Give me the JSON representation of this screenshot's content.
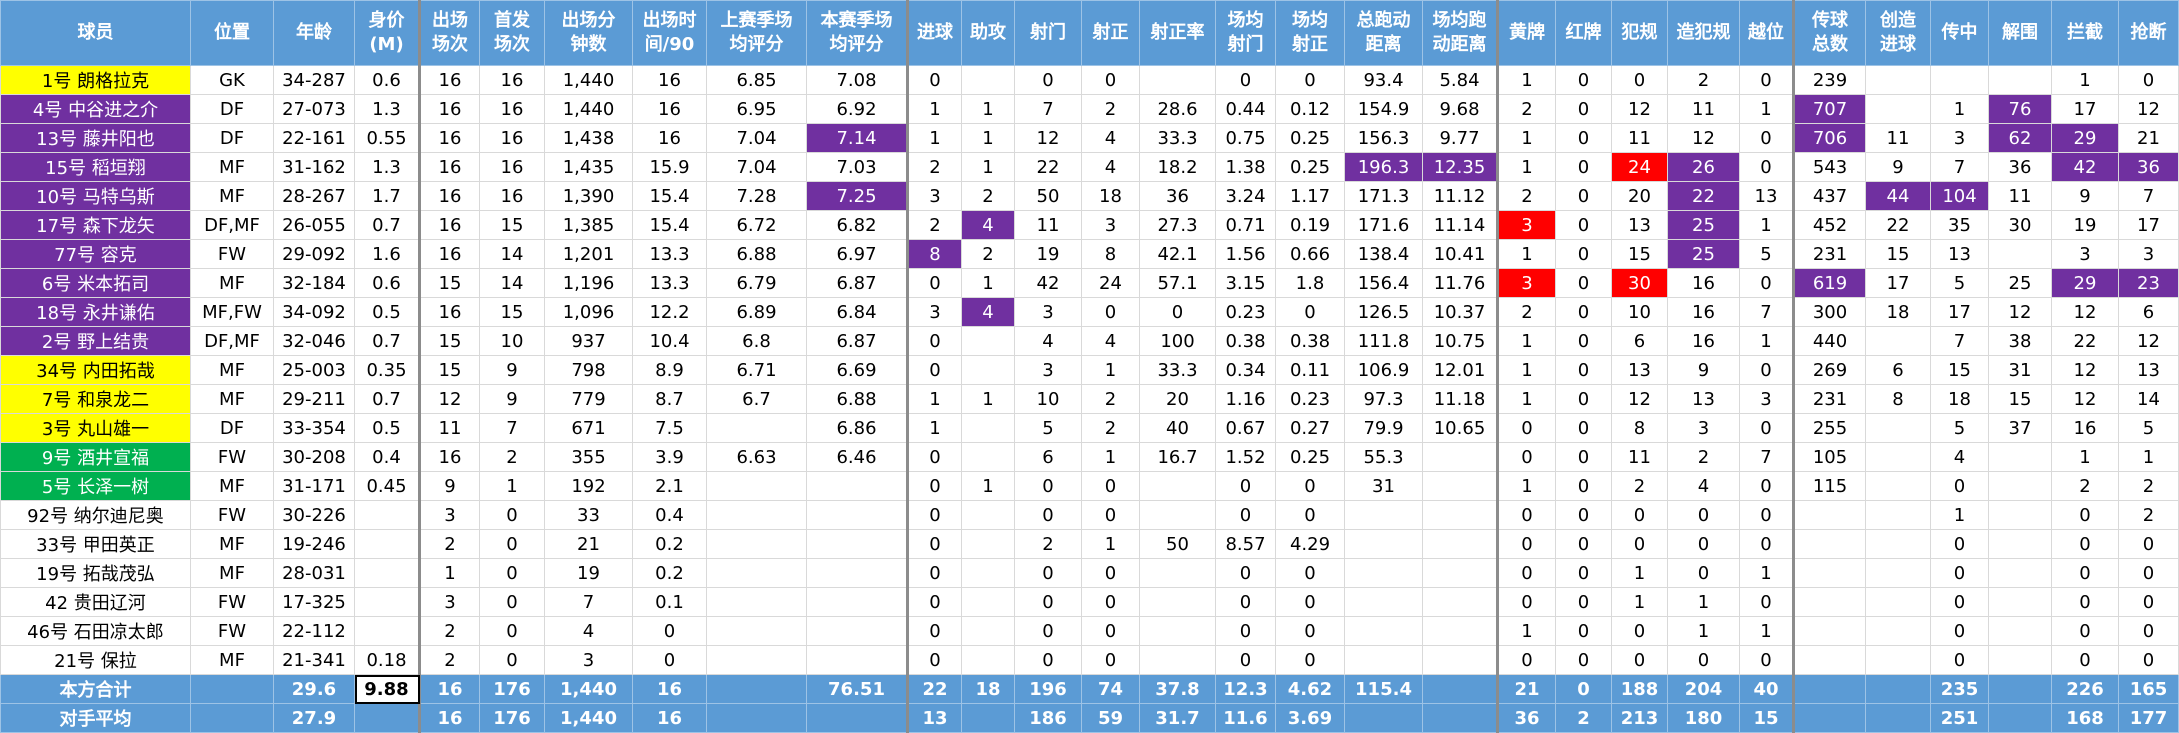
{
  "header": [
    "球员",
    "位置",
    "年龄",
    "身价\n(M)",
    "出场\n场次",
    "首发\n场次",
    "出场分\n钟数",
    "出场时\n间/90",
    "上赛季场\n均评分",
    "本赛季场\n均评分",
    "进球",
    "助攻",
    "射门",
    "射正",
    "射正率",
    "场均\n射门",
    "场均\n射正",
    "总跑动\n距离",
    "场均跑\n动距离",
    "黄牌",
    "红牌",
    "犯规",
    "造犯规",
    "越位",
    "传球\n总数",
    "创造\n进球",
    "传中",
    "解围",
    "拦截",
    "抢断"
  ],
  "rows": [
    {
      "name_color": "#ffff00",
      "cells": [
        "1号 朗格拉克",
        "GK",
        "34-287",
        0.6,
        16,
        16,
        "1,440",
        16,
        6.85,
        7.08,
        0,
        null,
        0,
        0,
        null,
        0,
        0,
        93.4,
        5.84,
        1,
        0,
        0,
        2,
        0,
        239,
        null,
        null,
        null,
        1,
        0
      ]
    },
    {
      "name_color": "#7030a0",
      "cells": [
        "4号 中谷进之介",
        "DF",
        "27-073",
        1.3,
        16,
        16,
        "1,440",
        16,
        6.95,
        6.92,
        1,
        1,
        7,
        2,
        28.6,
        0.44,
        0.12,
        154.9,
        9.68,
        2,
        0,
        12,
        11,
        1,
        707,
        null,
        1,
        76,
        17,
        12
      ],
      "highlight": {
        "24": "#7030a0",
        "27": "#7030a0"
      }
    },
    {
      "name_color": "#7030a0",
      "cells": [
        "13号 藤井阳也",
        "DF",
        "22-161",
        0.55,
        16,
        16,
        "1,438",
        16,
        7.04,
        7.14,
        1,
        1,
        12,
        4,
        33.3,
        0.75,
        0.25,
        156.3,
        9.77,
        1,
        0,
        11,
        12,
        0,
        706,
        11,
        3,
        62,
        29,
        21
      ],
      "highlight": {
        "9": "#7030a0",
        "24": "#7030a0",
        "27": "#7030a0",
        "28": "#7030a0"
      }
    },
    {
      "name_color": "#7030a0",
      "cells": [
        "15号 稻垣翔",
        "MF",
        "31-162",
        1.3,
        16,
        16,
        "1,435",
        15.9,
        7.04,
        7.03,
        2,
        1,
        22,
        4,
        18.2,
        1.38,
        0.25,
        196.3,
        12.35,
        1,
        0,
        24,
        26,
        0,
        543,
        9,
        7,
        36,
        42,
        36
      ],
      "highlight": {
        "17": "#7030a0",
        "18": "#7030a0",
        "21": "#ff0000",
        "22": "#7030a0",
        "28": "#7030a0",
        "29": "#7030a0"
      }
    },
    {
      "name_color": "#7030a0",
      "cells": [
        "10号 马特乌斯",
        "MF",
        "28-267",
        1.7,
        16,
        16,
        "1,390",
        15.4,
        7.28,
        7.25,
        3,
        2,
        50,
        18,
        36,
        3.24,
        1.17,
        171.3,
        11.12,
        2,
        0,
        20,
        22,
        13,
        437,
        44,
        104,
        11,
        9,
        7
      ],
      "highlight": {
        "9": "#7030a0",
        "22": "#7030a0",
        "25": "#7030a0",
        "26": "#7030a0"
      }
    },
    {
      "name_color": "#7030a0",
      "cells": [
        "17号 森下龙矢",
        "DF,MF",
        "26-055",
        0.7,
        16,
        15,
        "1,385",
        15.4,
        6.72,
        6.82,
        2,
        4,
        11,
        3,
        27.3,
        0.71,
        0.19,
        171.6,
        11.14,
        3,
        0,
        13,
        25,
        1,
        452,
        22,
        35,
        30,
        19,
        17
      ],
      "highlight": {
        "11": "#7030a0",
        "19": "#ff0000",
        "22": "#7030a0"
      }
    },
    {
      "name_color": "#7030a0",
      "cells": [
        "77号 容克",
        "FW",
        "29-092",
        1.6,
        16,
        14,
        "1,201",
        13.3,
        6.88,
        6.97,
        8,
        2,
        19,
        8,
        42.1,
        1.56,
        0.66,
        138.4,
        10.41,
        1,
        0,
        15,
        25,
        5,
        231,
        15,
        13,
        null,
        3,
        3
      ],
      "highlight": {
        "10": "#7030a0",
        "22": "#7030a0"
      }
    },
    {
      "name_color": "#7030a0",
      "cells": [
        "6号 米本拓司",
        "MF",
        "32-184",
        0.6,
        15,
        14,
        "1,196",
        13.3,
        6.79,
        6.87,
        0,
        1,
        42,
        24,
        57.1,
        3.15,
        1.8,
        156.4,
        11.76,
        3,
        0,
        30,
        16,
        0,
        619,
        17,
        5,
        25,
        29,
        23
      ],
      "highlight": {
        "19": "#ff0000",
        "21": "#ff0000",
        "24": "#7030a0",
        "28": "#7030a0",
        "29": "#7030a0"
      }
    },
    {
      "name_color": "#7030a0",
      "cells": [
        "18号 永井谦佑",
        "MF,FW",
        "34-092",
        0.5,
        16,
        15,
        "1,096",
        12.2,
        6.89,
        6.84,
        3,
        4,
        3,
        0,
        0,
        0.23,
        0,
        126.5,
        10.37,
        2,
        0,
        10,
        16,
        7,
        300,
        18,
        17,
        12,
        12,
        6
      ],
      "highlight": {
        "11": "#7030a0"
      }
    },
    {
      "name_color": "#7030a0",
      "cells": [
        "2号 野上结贵",
        "DF,MF",
        "32-046",
        0.7,
        15,
        10,
        "937",
        10.4,
        6.8,
        6.87,
        0,
        null,
        4,
        4,
        100,
        0.38,
        0.38,
        111.8,
        10.75,
        1,
        0,
        6,
        16,
        1,
        440,
        null,
        7,
        38,
        22,
        12
      ]
    },
    {
      "name_color": "#ffff00",
      "cells": [
        "34号 内田拓哉",
        "MF",
        "25-003",
        0.35,
        15,
        9,
        "798",
        8.9,
        6.71,
        6.69,
        0,
        null,
        3,
        1,
        33.3,
        0.34,
        0.11,
        106.9,
        12.01,
        1,
        0,
        13,
        9,
        0,
        269,
        6,
        15,
        31,
        12,
        13
      ]
    },
    {
      "name_color": "#ffff00",
      "cells": [
        "7号 和泉龙二",
        "MF",
        "29-211",
        0.7,
        12,
        9,
        "779",
        8.7,
        6.7,
        6.88,
        1,
        1,
        10,
        2,
        20,
        1.16,
        0.23,
        97.3,
        11.18,
        1,
        0,
        12,
        13,
        3,
        231,
        8,
        18,
        15,
        12,
        14
      ]
    },
    {
      "name_color": "#ffff00",
      "cells": [
        "3号 丸山雄一",
        "DF",
        "33-354",
        0.5,
        11,
        7,
        "671",
        7.5,
        null,
        6.86,
        1,
        null,
        5,
        2,
        40,
        0.67,
        0.27,
        79.9,
        10.65,
        0,
        0,
        8,
        3,
        0,
        255,
        null,
        5,
        37,
        16,
        5
      ]
    },
    {
      "name_color": "#00b050",
      "cells": [
        "9号 酒井宣福",
        "FW",
        "30-208",
        0.4,
        16,
        2,
        "355",
        3.9,
        6.63,
        6.46,
        0,
        null,
        6,
        1,
        16.7,
        1.52,
        0.25,
        55.3,
        null,
        0,
        0,
        11,
        2,
        7,
        105,
        null,
        4,
        null,
        1,
        1
      ]
    },
    {
      "name_color": "#00b050",
      "cells": [
        "5号 长泽一树",
        "MF",
        "31-171",
        0.45,
        9,
        1,
        "192",
        2.1,
        null,
        null,
        0,
        1,
        0,
        0,
        null,
        0,
        0,
        31,
        null,
        1,
        0,
        2,
        4,
        0,
        115,
        null,
        0,
        null,
        2,
        2
      ]
    },
    {
      "name_color": "#ffffff",
      "cells": [
        "92号 纳尔迪尼奥",
        "FW",
        "30-226",
        null,
        3,
        0,
        "33",
        0.4,
        null,
        null,
        0,
        null,
        0,
        0,
        null,
        0,
        0,
        null,
        null,
        0,
        0,
        0,
        0,
        0,
        null,
        null,
        1,
        null,
        0,
        2
      ]
    },
    {
      "name_color": "#ffffff",
      "cells": [
        "33号 甲田英正",
        "MF",
        "19-246",
        null,
        2,
        0,
        "21",
        0.2,
        null,
        null,
        0,
        null,
        2,
        1,
        50,
        8.57,
        4.29,
        null,
        null,
        0,
        0,
        0,
        0,
        0,
        null,
        null,
        0,
        null,
        0,
        0
      ]
    },
    {
      "name_color": "#ffffff",
      "cells": [
        "19号 拓哉茂弘",
        "MF",
        "28-031",
        null,
        1,
        0,
        "19",
        0.2,
        null,
        null,
        0,
        null,
        0,
        0,
        null,
        0,
        0,
        null,
        null,
        0,
        0,
        1,
        0,
        1,
        null,
        null,
        0,
        null,
        0,
        0
      ]
    },
    {
      "name_color": "#ffffff",
      "cells": [
        "42 贵田辽河",
        "FW",
        "17-325",
        null,
        3,
        0,
        "7",
        0.1,
        null,
        null,
        0,
        null,
        0,
        0,
        null,
        0,
        0,
        null,
        null,
        0,
        0,
        1,
        1,
        0,
        null,
        null,
        0,
        null,
        0,
        0
      ]
    },
    {
      "name_color": "#ffffff",
      "cells": [
        "46号 石田凉太郎",
        "FW",
        "22-112",
        null,
        2,
        0,
        "4",
        0,
        null,
        null,
        0,
        null,
        0,
        0,
        null,
        0,
        0,
        null,
        null,
        1,
        0,
        0,
        1,
        1,
        null,
        null,
        0,
        null,
        0,
        0
      ]
    },
    {
      "name_color": "#ffffff",
      "cells": [
        "21号 保拉",
        "MF",
        "21-341",
        0.18,
        2,
        0,
        "3",
        0,
        null,
        null,
        0,
        null,
        0,
        0,
        null,
        0,
        0,
        null,
        null,
        0,
        0,
        0,
        0,
        0,
        null,
        null,
        0,
        null,
        0,
        0
      ]
    }
  ],
  "totals": [
    {
      "cells": [
        "本方合计",
        null,
        29.6,
        9.88,
        16,
        176,
        "1,440",
        16,
        null,
        76.51,
        22,
        18,
        196,
        74,
        37.8,
        12.3,
        4.62,
        115.4,
        null,
        21,
        0,
        188,
        204,
        40,
        null,
        null,
        235,
        null,
        226,
        165
      ],
      "highlight": {
        "3": "#ffffff"
      }
    },
    {
      "cells": [
        "对手平均",
        null,
        27.9,
        null,
        16,
        176,
        "1,440",
        16,
        null,
        null,
        13,
        null,
        186,
        59,
        31.7,
        11.6,
        3.69,
        null,
        null,
        36,
        2,
        213,
        180,
        15,
        null,
        null,
        251,
        null,
        168,
        177
      ]
    }
  ]
}
